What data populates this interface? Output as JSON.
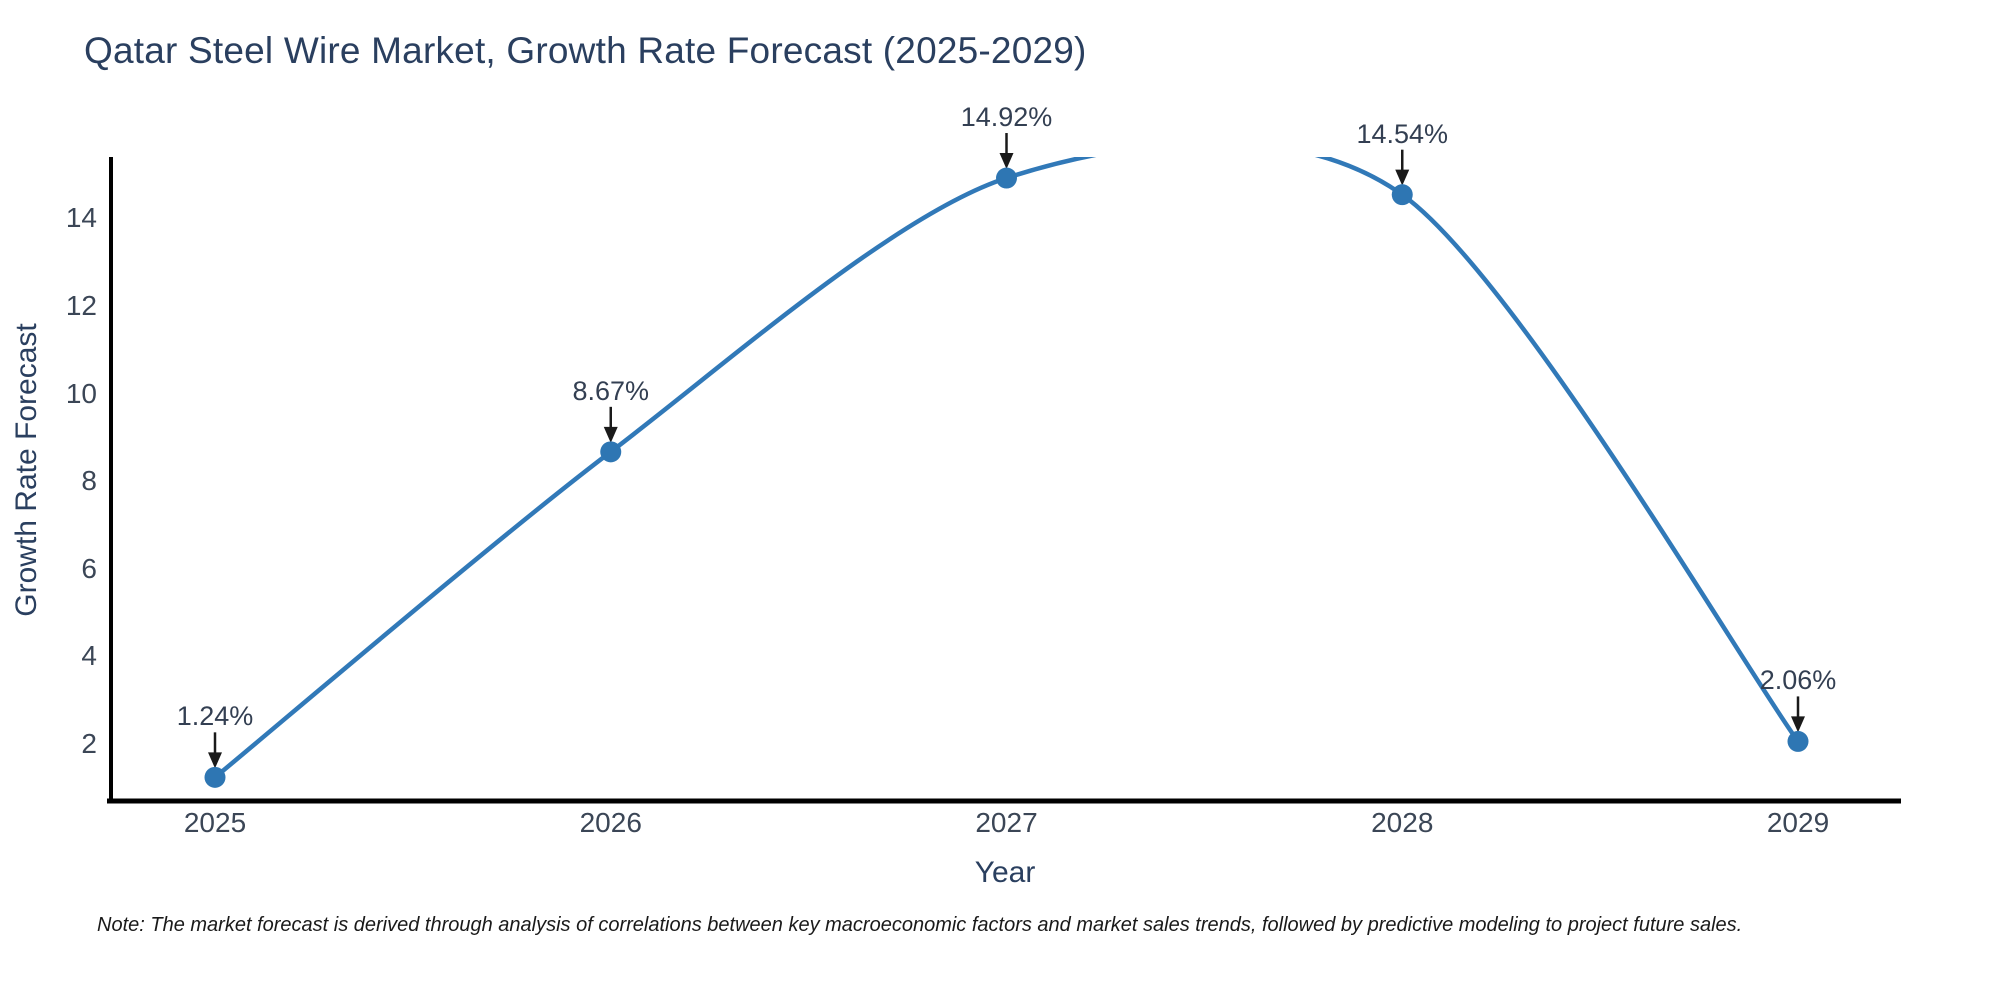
{
  "chart_data": {
    "type": "line",
    "title": "Qatar Steel Wire Market, Growth Rate Forecast (2025-2029)",
    "xlabel": "Year",
    "ylabel": "Growth Rate Forecast",
    "categories": [
      "2025",
      "2026",
      "2027",
      "2028",
      "2029"
    ],
    "values": [
      1.24,
      8.67,
      14.92,
      14.54,
      2.06
    ],
    "point_labels": [
      "1.24%",
      "8.67%",
      "14.92%",
      "14.54%",
      "2.06%"
    ],
    "y_ticks": [
      2,
      4,
      6,
      8,
      10,
      12,
      14
    ],
    "y_range": [
      0.7,
      15.4
    ],
    "line_shape": "spline",
    "grid": false,
    "legend": false,
    "note": "Note: The market forecast is derived through analysis of correlations between key macroeconomic factors and market sales trends, followed by predictive modeling to project future sales.",
    "colors": {
      "line": "#3179b8",
      "marker": "#2e76b3",
      "axis": "#000000",
      "title_text": "#2a3f5f",
      "tick_text": "#3b4656",
      "annotation_text": "#333f52",
      "arrow": "#1a1a1a",
      "note_text": "#1a1a1a"
    }
  }
}
